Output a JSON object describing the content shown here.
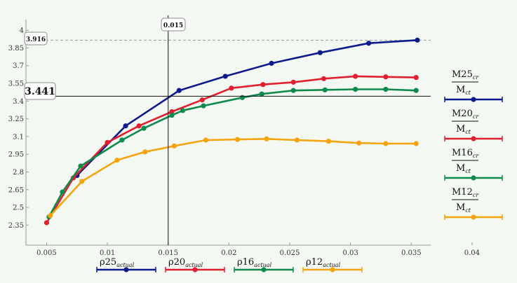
{
  "chart_data": {
    "type": "line",
    "x_ticks": [
      "0.005",
      "0.01",
      "0.015",
      "0.02",
      "0.025",
      "0.03",
      "0.035",
      "0.04"
    ],
    "y_ticks": [
      "2.35",
      "2.5",
      "2.65",
      "2.8",
      "2.95",
      "3.1",
      "3.25",
      "3.4",
      "3.55",
      "3.7",
      "3.85",
      "4"
    ],
    "xlim": [
      0.0033,
      0.0366
    ],
    "ylim": [
      2.18,
      4.09
    ],
    "marker_vertical": {
      "x": 0.015,
      "label": "0.015"
    },
    "marker_horizontal": {
      "y": 3.441,
      "label": "3.441"
    },
    "marker_dashed": {
      "y": 3.916,
      "label": "3.916"
    },
    "series": [
      {
        "color": "#0d1b8c",
        "legend_num": "M25",
        "legend_num_sub": "cr",
        "legend_den": "M",
        "legend_den_sub": "ct",
        "x_name": "ρ25",
        "x_sub": "actual",
        "x": [
          0.0075,
          0.0115,
          0.0159,
          0.0197,
          0.0235,
          0.0275,
          0.0315,
          0.0355
        ],
        "y": [
          2.77,
          3.19,
          3.49,
          3.61,
          3.72,
          3.81,
          3.89,
          3.916
        ]
      },
      {
        "color": "#e0202e",
        "legend_num": "M20",
        "legend_num_sub": "cr",
        "legend_den": "M",
        "legend_den_sub": "ct",
        "x_name": "ρ20",
        "x_sub": "actual",
        "x": [
          0.005,
          0.0072,
          0.01,
          0.0126,
          0.0153,
          0.0178,
          0.0202,
          0.0228,
          0.0253,
          0.0278,
          0.0304,
          0.0329,
          0.0354
        ],
        "y": [
          2.37,
          2.75,
          3.05,
          3.19,
          3.31,
          3.41,
          3.51,
          3.54,
          3.56,
          3.59,
          3.61,
          3.605,
          3.6
        ]
      },
      {
        "color": "#0e8a4c",
        "legend_num": "M16",
        "legend_num_sub": "cr",
        "legend_den": "M",
        "legend_den_sub": "ct",
        "x_name": "ρ16",
        "x_sub": "actual",
        "x": [
          0.0052,
          0.0063,
          0.0078,
          0.0112,
          0.013,
          0.0153,
          0.0162,
          0.0179,
          0.0211,
          0.0227,
          0.0253,
          0.0279,
          0.0304,
          0.0329,
          0.0354
        ],
        "y": [
          2.42,
          2.63,
          2.85,
          3.07,
          3.17,
          3.28,
          3.32,
          3.36,
          3.43,
          3.46,
          3.49,
          3.495,
          3.5,
          3.5,
          3.49
        ]
      },
      {
        "color": "#f5a30f",
        "legend_num": "M12",
        "legend_num_sub": "cr",
        "legend_den": "M",
        "legend_den_sub": "ct",
        "x_name": "ρ12",
        "x_sub": "actual",
        "x": [
          0.0053,
          0.0079,
          0.0108,
          0.0131,
          0.0155,
          0.0181,
          0.0207,
          0.0231,
          0.0256,
          0.0282,
          0.0307,
          0.0329,
          0.0354
        ],
        "y": [
          2.43,
          2.72,
          2.9,
          2.97,
          3.02,
          3.07,
          3.075,
          3.08,
          3.07,
          3.06,
          3.045,
          3.04,
          3.04
        ]
      }
    ]
  }
}
